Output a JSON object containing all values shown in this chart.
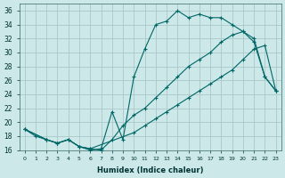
{
  "xlabel": "Humidex (Indice chaleur)",
  "bg_color": "#cce8e8",
  "grid_color": "#aac8c8",
  "line_color": "#006666",
  "xlim": [
    -0.5,
    23.5
  ],
  "ylim": [
    16,
    37
  ],
  "xticks": [
    0,
    1,
    2,
    3,
    4,
    5,
    6,
    7,
    8,
    9,
    10,
    11,
    12,
    13,
    14,
    15,
    16,
    17,
    18,
    19,
    20,
    21,
    22,
    23
  ],
  "yticks": [
    16,
    18,
    20,
    22,
    24,
    26,
    28,
    30,
    32,
    34,
    36
  ],
  "line1_x": [
    0,
    1,
    2,
    3,
    4,
    5,
    6,
    7,
    8,
    9,
    10,
    11,
    12,
    13,
    14,
    15,
    16,
    17,
    18,
    19,
    20,
    21,
    22,
    23
  ],
  "line1_y": [
    19.0,
    18.0,
    17.5,
    17.0,
    17.5,
    16.5,
    16.0,
    16.2,
    21.5,
    17.5,
    26.5,
    30.5,
    34.0,
    34.5,
    36.0,
    35.0,
    35.5,
    35.0,
    35.0,
    34.0,
    33.0,
    31.5,
    26.5,
    24.5
  ],
  "line2_x": [
    0,
    2,
    3,
    4,
    5,
    6,
    7,
    8,
    9,
    10,
    11,
    12,
    13,
    14,
    15,
    16,
    17,
    18,
    19,
    20,
    21,
    22,
    23
  ],
  "line2_y": [
    19.0,
    17.5,
    17.0,
    17.5,
    16.5,
    16.2,
    16.0,
    17.5,
    19.5,
    21.0,
    22.0,
    23.5,
    25.0,
    26.5,
    28.0,
    29.0,
    30.0,
    31.5,
    32.5,
    33.0,
    32.0,
    26.5,
    24.5
  ],
  "line3_x": [
    0,
    2,
    3,
    4,
    5,
    6,
    10,
    11,
    12,
    13,
    14,
    15,
    16,
    17,
    18,
    19,
    20,
    21,
    22,
    23
  ],
  "line3_y": [
    19.0,
    17.5,
    17.0,
    17.5,
    16.5,
    16.2,
    18.5,
    19.5,
    20.5,
    21.5,
    22.5,
    23.5,
    24.5,
    25.5,
    26.5,
    27.5,
    29.0,
    30.5,
    31.0,
    24.5
  ]
}
